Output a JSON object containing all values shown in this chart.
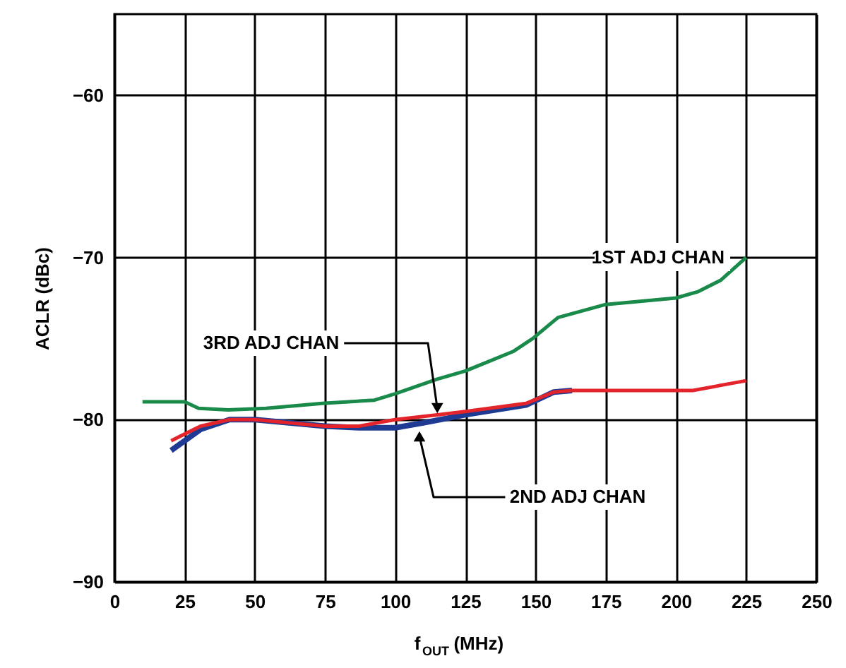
{
  "chart_data": {
    "type": "line",
    "xlabel": "f$_{OUT}$ (MHz)",
    "ylabel": "ACLR (dBc)",
    "xlim": [
      0,
      250
    ],
    "xticks": [
      0,
      25,
      50,
      75,
      100,
      125,
      150,
      175,
      200,
      225,
      250
    ],
    "ylim": [
      -90,
      -55
    ],
    "yticks": [
      -90,
      -80,
      -70,
      -60
    ],
    "grid": true,
    "line_style": "solid",
    "marker": "none",
    "series": [
      {
        "color": "#1a8a4a",
        "x": [
          10,
          25,
          30,
          40.5,
          54,
          74,
          92.6,
          100,
          115,
          125,
          142,
          149,
          158,
          175,
          200,
          208,
          216,
          225
        ],
        "values": [
          -78.9,
          -78.9,
          -79.3,
          -79.4,
          -79.3,
          -79.0,
          -78.8,
          -78.4,
          -77.5,
          -77.0,
          -75.8,
          -75.0,
          -73.7,
          -72.9,
          -72.5,
          -72.1,
          -71.4,
          -70.0
        ]
      },
      {
        "color": "#1f3a93",
        "x": [
          20.2,
          30.7,
          41,
          50,
          75,
          87,
          100,
          110,
          125,
          146.6,
          156.5,
          163
        ],
        "values": [
          -81.9,
          -80.6,
          -80.0,
          -80.0,
          -80.4,
          -80.5,
          -80.5,
          -80.2,
          -79.7,
          -79.1,
          -78.3,
          -78.2
        ]
      },
      {
        "color": "#e3242b",
        "x": [
          20.2,
          30.7,
          41,
          50,
          62.5,
          75,
          87,
          100,
          115,
          125,
          146.6,
          156.5,
          163,
          206,
          225
        ],
        "values": [
          -81.3,
          -80.4,
          -80.0,
          -80.0,
          -80.2,
          -80.4,
          -80.4,
          -80.0,
          -79.7,
          -79.5,
          -79.0,
          -78.3,
          -78.2,
          -78.2,
          -77.6
        ]
      }
    ],
    "annotations": [
      {
        "text": "1ST ADJ CHAN",
        "x": 225,
        "y": -70
      },
      {
        "text": "3RD ADJ CHAN",
        "x": 115,
        "y": -79.7
      },
      {
        "text": "2ND ADJ CHAN",
        "x": 108,
        "y": -80.6
      }
    ]
  }
}
